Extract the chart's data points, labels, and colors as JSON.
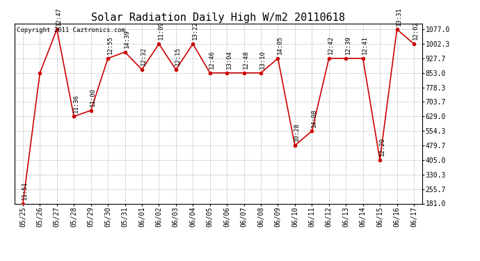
{
  "title": "Solar Radiation Daily High W/m2 20110618",
  "copyright": "Copyright 2011 Caztronics.com",
  "dates": [
    "05/25",
    "05/26",
    "05/27",
    "05/28",
    "05/29",
    "05/30",
    "05/31",
    "06/01",
    "06/02",
    "06/03",
    "06/04",
    "06/05",
    "06/06",
    "06/07",
    "06/08",
    "06/09",
    "06/10",
    "06/11",
    "06/12",
    "06/13",
    "06/14",
    "06/15",
    "06/16",
    "06/17"
  ],
  "values": [
    181.0,
    853.0,
    1077.0,
    629.0,
    660.0,
    927.7,
    960.0,
    870.0,
    1002.3,
    870.0,
    1002.3,
    853.0,
    853.0,
    853.0,
    853.0,
    927.7,
    479.7,
    554.3,
    927.7,
    927.7,
    927.7,
    405.0,
    1077.0,
    1002.3
  ],
  "times": [
    "11:51",
    "",
    "12:47",
    "11:36",
    "11:00",
    "12:55",
    "14:39",
    "12:32",
    "11:09",
    "12:15",
    "13:22",
    "12:46",
    "13:04",
    "12:48",
    "13:10",
    "14:05",
    "10:28",
    "14:08",
    "12:42",
    "12:39",
    "12:41",
    "12:20",
    "13:31",
    "12:02"
  ],
  "ylim": [
    181.0,
    1107.0
  ],
  "yticks": [
    181.0,
    255.7,
    330.3,
    405.0,
    479.7,
    554.3,
    629.0,
    703.7,
    778.3,
    853.0,
    927.7,
    1002.3,
    1077.0
  ],
  "line_color": "#cc0000",
  "marker_color": "#cc0000",
  "bg_color": "#ffffff",
  "grid_color": "#b0b0b0",
  "title_fontsize": 11,
  "label_fontsize": 7,
  "annotation_fontsize": 6.5,
  "copyright_fontsize": 6.5
}
